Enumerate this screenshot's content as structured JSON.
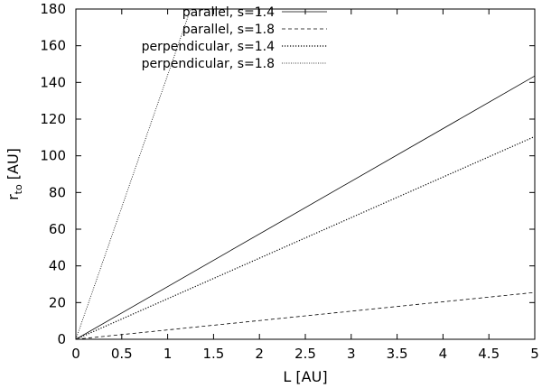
{
  "chart_data": {
    "type": "line",
    "xlabel": "L [AU]",
    "ylabel_main": "r",
    "ylabel_sub": "to",
    "ylabel_unit": " [AU]",
    "xlim": [
      0,
      5
    ],
    "ylim": [
      0,
      180
    ],
    "xticks": [
      0,
      0.5,
      1,
      1.5,
      2,
      2.5,
      3,
      3.5,
      4,
      4.5,
      5
    ],
    "yticks": [
      0,
      20,
      40,
      60,
      80,
      100,
      120,
      140,
      160,
      180
    ],
    "grid": false,
    "legend_position": "top-center",
    "series": [
      {
        "name": "parallel, s=1.4",
        "style": "solid",
        "x": [
          0,
          5
        ],
        "y": [
          0,
          143.5
        ]
      },
      {
        "name": "parallel, s=1.8",
        "style": "dashed",
        "x": [
          0,
          5
        ],
        "y": [
          0,
          25.5
        ]
      },
      {
        "name": "perpendicular, s=1.4",
        "style": "dotted",
        "x": [
          0,
          5
        ],
        "y": [
          0,
          110.5
        ]
      },
      {
        "name": "perpendicular, s=1.8",
        "style": "dashdot",
        "x": [
          0,
          1.25
        ],
        "y": [
          0,
          180
        ]
      }
    ]
  }
}
